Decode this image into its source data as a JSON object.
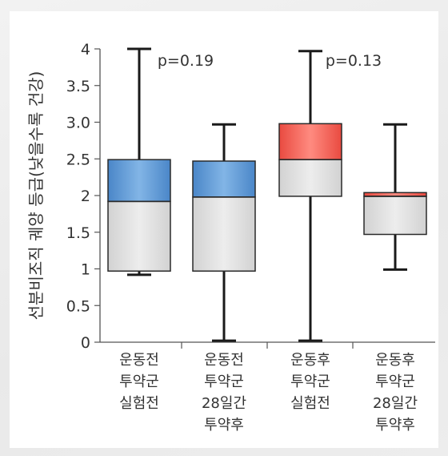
{
  "chart_data": {
    "type": "boxplot",
    "ylabel": "선분비조직 궤양 등급(낮을수록 건강)",
    "yticks": [
      "4",
      "3.5",
      "3.0",
      "2.5",
      "2",
      "1.5",
      "1",
      "0.5",
      "0"
    ],
    "ylim": [
      0,
      4
    ],
    "categories": [
      [
        "운동전",
        "투약군",
        "실험전"
      ],
      [
        "운동전",
        "투약군",
        "28일간",
        "투약후"
      ],
      [
        "운동후",
        "투약군",
        "실험전"
      ],
      [
        "운동후",
        "투약군",
        "28일간",
        "투약후"
      ]
    ],
    "boxes": [
      {
        "min": 0.92,
        "q1": 0.97,
        "median": 1.92,
        "q3": 2.49,
        "max": 4.0
      },
      {
        "min": 0.02,
        "q1": 0.97,
        "median": 1.98,
        "q3": 2.47,
        "max": 2.97
      },
      {
        "min": 0.02,
        "q1": 1.99,
        "median": 2.49,
        "q3": 2.98,
        "max": 3.97
      },
      {
        "min": 0.99,
        "q1": 1.47,
        "median": 1.99,
        "q3": 2.04,
        "max": 2.97
      }
    ],
    "annotations": [
      "p=0.19",
      "p=0.13"
    ],
    "colors": {
      "upper_box_groups_pre": "#5b96d3",
      "upper_box_groups_post": "#ee5a50",
      "lower_box": "#dcdcdc",
      "line": "#1a1a1a"
    }
  }
}
